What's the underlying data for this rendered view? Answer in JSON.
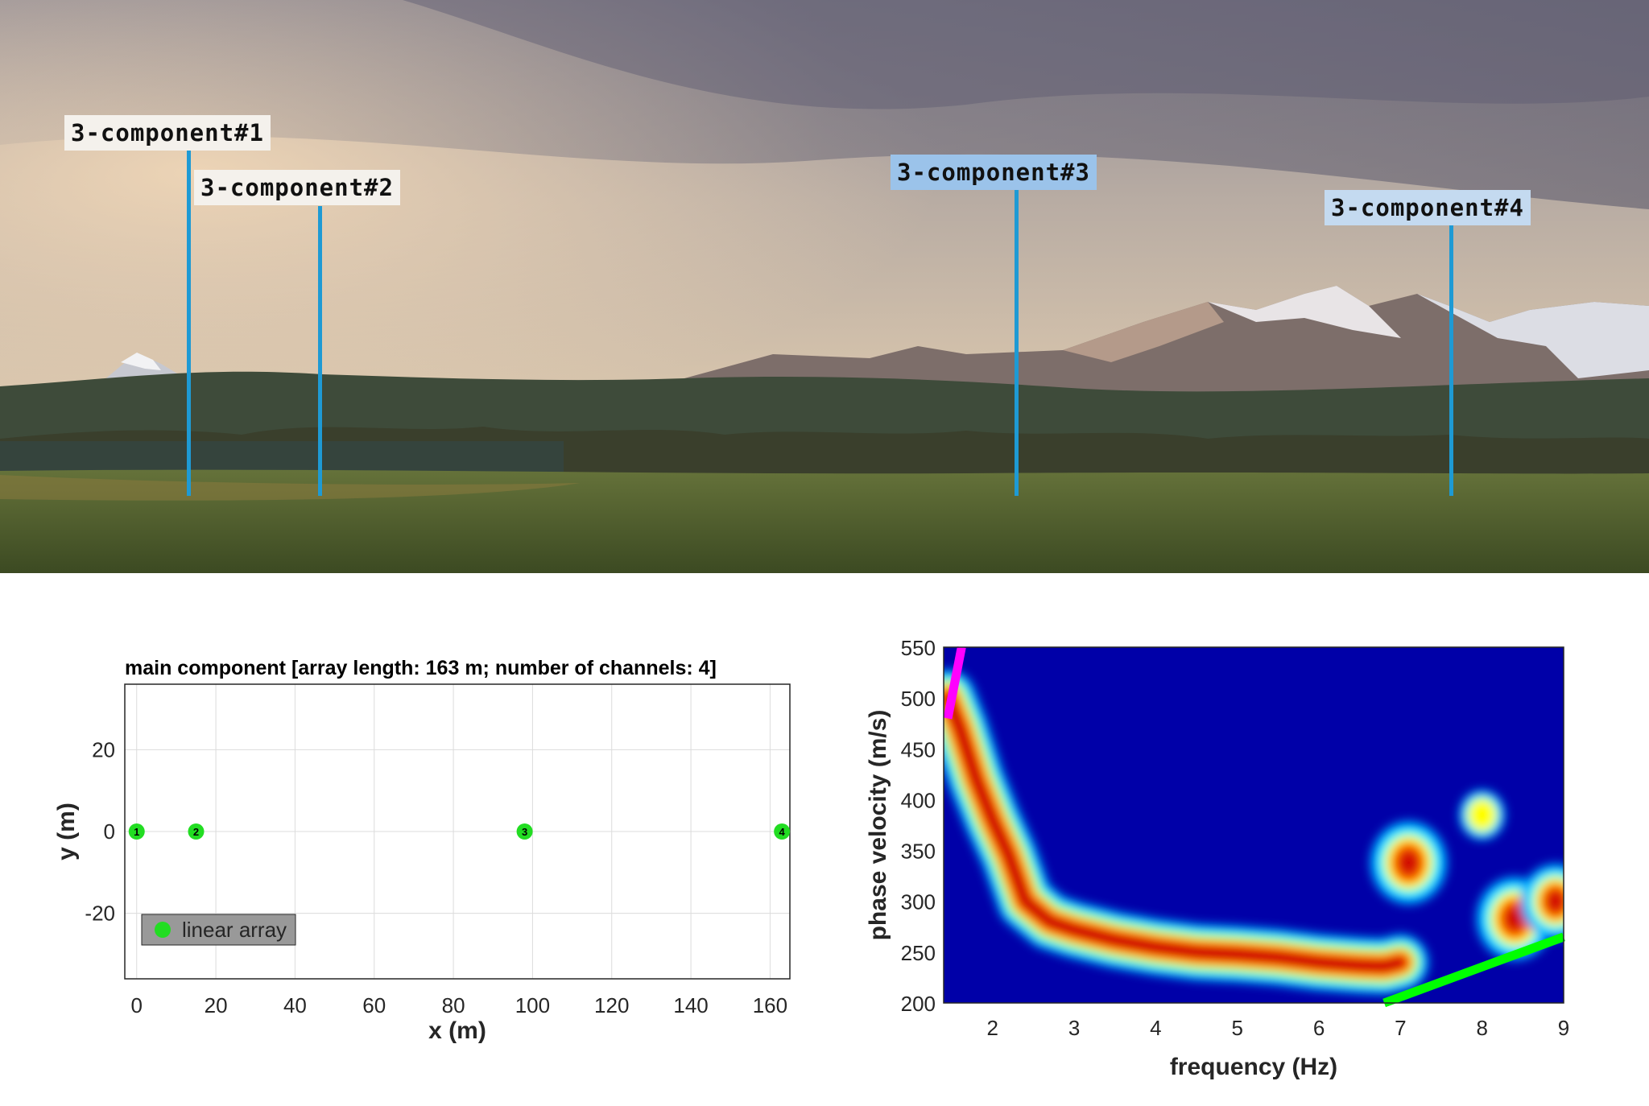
{
  "photo": {
    "stations": [
      {
        "label": "3-component#1"
      },
      {
        "label": "3-component#2"
      },
      {
        "label": "3-component#3"
      },
      {
        "label": "3-component#4"
      }
    ],
    "colors": {
      "pole": "#1e9ad4",
      "grass": "#4d5e2c",
      "sky": "#c9b9a4"
    }
  },
  "chart_data": [
    {
      "type": "scatter",
      "title": "main component [array length: 163 m; number of channels: 4]",
      "xlabel": "x (m)",
      "ylabel": "y (m)",
      "xlim": [
        -3,
        165
      ],
      "ylim": [
        -36,
        36
      ],
      "xticks": [
        "0",
        "20",
        "40",
        "60",
        "80",
        "100",
        "120",
        "140",
        "160"
      ],
      "yticks": [
        "20",
        "0",
        "-20"
      ],
      "grid": true,
      "legend": {
        "label": "linear array",
        "placement": "bottom-left"
      },
      "series": [
        {
          "name": "linear array",
          "color": "#22dd22",
          "points": [
            {
              "x": 0,
              "y": 0,
              "label": "1"
            },
            {
              "x": 15,
              "y": 0,
              "label": "2"
            },
            {
              "x": 98,
              "y": 0,
              "label": "3"
            },
            {
              "x": 163,
              "y": 0,
              "label": "4"
            }
          ]
        }
      ]
    },
    {
      "type": "heatmap",
      "title": "",
      "xlabel": "frequency (Hz)",
      "ylabel": "phase velocity (m/s)",
      "xlim": [
        1.4,
        9
      ],
      "ylim": [
        200,
        550
      ],
      "xticks": [
        "2",
        "3",
        "4",
        "5",
        "6",
        "7",
        "8",
        "9"
      ],
      "yticks": [
        "550",
        "500",
        "450",
        "400",
        "350",
        "300",
        "250",
        "200"
      ],
      "colormap": "jet",
      "ridge": [
        [
          1.45,
          500
        ],
        [
          1.6,
          470
        ],
        [
          1.8,
          420
        ],
        [
          2.0,
          380
        ],
        [
          2.2,
          345
        ],
        [
          2.4,
          300
        ],
        [
          2.7,
          280
        ],
        [
          3.0,
          272
        ],
        [
          3.5,
          262
        ],
        [
          4.0,
          255
        ],
        [
          4.5,
          250
        ],
        [
          5.0,
          248
        ],
        [
          5.5,
          245
        ],
        [
          6.0,
          240
        ],
        [
          6.5,
          237
        ],
        [
          6.8,
          236
        ],
        [
          7.0,
          240
        ]
      ],
      "blobs": [
        {
          "f": 7.1,
          "v": 338,
          "strength": 1.0
        },
        {
          "f": 8.0,
          "v": 385,
          "strength": 0.6
        },
        {
          "f": 8.4,
          "v": 283,
          "strength": 1.0
        },
        {
          "f": 8.9,
          "v": 300,
          "strength": 0.9
        }
      ],
      "overlay_lines": [
        {
          "color": "#ff00ff",
          "from": [
            1.45,
            480
          ],
          "to": [
            1.62,
            550
          ]
        },
        {
          "color": "#00ff00",
          "from": [
            6.8,
            200
          ],
          "to": [
            9.0,
            265
          ]
        }
      ]
    }
  ]
}
